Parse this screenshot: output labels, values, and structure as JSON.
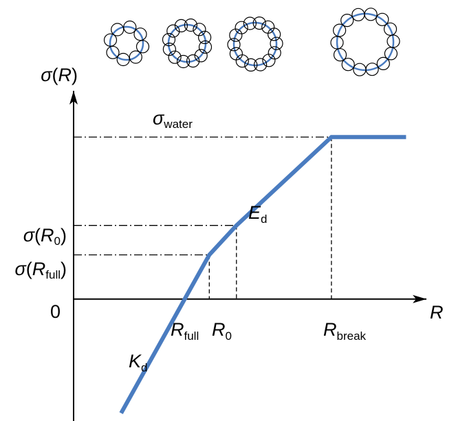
{
  "chart_data": {
    "type": "line",
    "axes": {
      "y_label": {
        "prefix": "σ",
        "paren_open": "(",
        "var": "R",
        "paren_close": ")"
      },
      "x_label": "R"
    },
    "y_ticks": [
      {
        "main": "σ",
        "sub": "water"
      },
      {
        "main": "σ",
        "open": "(",
        "var": "R",
        "sub": "0",
        "close": ")"
      },
      {
        "main": "σ",
        "open": "(",
        "var": "R",
        "sub": "full",
        "close": ")"
      },
      {
        "main": "0"
      }
    ],
    "x_ticks": [
      {
        "var": "R",
        "sub": "full"
      },
      {
        "var": "R",
        "sub": "0"
      },
      {
        "var": "R",
        "sub": "break"
      }
    ],
    "annotations": [
      {
        "var": "E",
        "sub": "d"
      },
      {
        "var": "K",
        "sub": "d"
      }
    ],
    "series": [
      {
        "points": [
          [
            -0.3,
            -1.55
          ],
          [
            1.0,
            0.6
          ],
          [
            1.4,
            1.0
          ],
          [
            2.8,
            2.2
          ],
          [
            3.9,
            2.2
          ]
        ]
      }
    ],
    "xlim": [
      -1.0,
      4.2
    ],
    "ylim": [
      -1.6,
      2.8
    ],
    "droplets": [
      {
        "beads": 8
      },
      {
        "beads": 12
      },
      {
        "beads": 14
      },
      {
        "beads": 14
      }
    ],
    "colors": {
      "curve": "#4a7cc0",
      "axis": "#000000",
      "guide": "#000000"
    }
  }
}
